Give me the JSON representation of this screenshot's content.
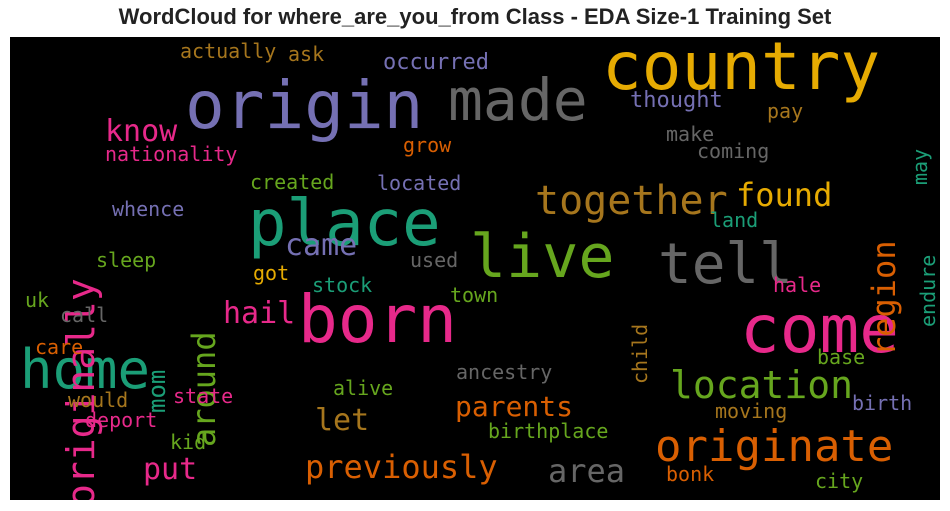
{
  "chart_data": {
    "type": "wordcloud",
    "title": "WordCloud for where_are_you_from Class - EDA Size-1 Training Set",
    "background": "#000000",
    "words": [
      {
        "text": "country",
        "color": "#e6ab02",
        "weight": 0.95
      },
      {
        "text": "origin",
        "color": "#7570b3",
        "weight": 1.0
      },
      {
        "text": "made",
        "color": "#666666",
        "weight": 0.8
      },
      {
        "text": "place",
        "color": "#1b9e77",
        "weight": 0.92
      },
      {
        "text": "born",
        "color": "#e7298a",
        "weight": 0.9
      },
      {
        "text": "come",
        "color": "#e7298a",
        "weight": 0.87
      },
      {
        "text": "home",
        "color": "#1b9e77",
        "weight": 0.78
      },
      {
        "text": "live",
        "color": "#66a61e",
        "weight": 0.8
      },
      {
        "text": "tell",
        "color": "#666666",
        "weight": 0.72
      },
      {
        "text": "originally",
        "color": "#e7298a",
        "weight": 0.62
      },
      {
        "text": "together",
        "color": "#a6761d",
        "weight": 0.6
      },
      {
        "text": "originate",
        "color": "#d95f02",
        "weight": 0.68
      },
      {
        "text": "location",
        "color": "#66a61e",
        "weight": 0.6
      },
      {
        "text": "previously",
        "color": "#d95f02",
        "weight": 0.5
      },
      {
        "text": "found",
        "color": "#e6ab02",
        "weight": 0.5
      },
      {
        "text": "region",
        "color": "#d95f02",
        "weight": 0.5
      },
      {
        "text": "around",
        "color": "#66a61e",
        "weight": 0.5
      },
      {
        "text": "know",
        "color": "#e7298a",
        "weight": 0.45
      },
      {
        "text": "came",
        "color": "#7570b3",
        "weight": 0.45
      },
      {
        "text": "hail",
        "color": "#e7298a",
        "weight": 0.45
      },
      {
        "text": "area",
        "color": "#666666",
        "weight": 0.45
      },
      {
        "text": "put",
        "color": "#e7298a",
        "weight": 0.45
      },
      {
        "text": "let",
        "color": "#a6761d",
        "weight": 0.45
      },
      {
        "text": "parents",
        "color": "#d95f02",
        "weight": 0.45
      },
      {
        "text": "mom",
        "color": "#1b9e77",
        "weight": 0.35
      },
      {
        "text": "thought",
        "color": "#7570b3",
        "weight": 0.3
      },
      {
        "text": "occurred",
        "color": "#7570b3",
        "weight": 0.3
      },
      {
        "text": "actually",
        "color": "#a6761d",
        "weight": 0.3
      },
      {
        "text": "ask",
        "color": "#a6761d",
        "weight": 0.3
      },
      {
        "text": "nationality",
        "color": "#e7298a",
        "weight": 0.3
      },
      {
        "text": "grow",
        "color": "#d95f02",
        "weight": 0.3
      },
      {
        "text": "make",
        "color": "#666666",
        "weight": 0.3
      },
      {
        "text": "coming",
        "color": "#666666",
        "weight": 0.3
      },
      {
        "text": "pay",
        "color": "#a6761d",
        "weight": 0.3
      },
      {
        "text": "may",
        "color": "#1b9e77",
        "weight": 0.28
      },
      {
        "text": "endure",
        "color": "#1b9e77",
        "weight": 0.28
      },
      {
        "text": "created",
        "color": "#66a61e",
        "weight": 0.28
      },
      {
        "text": "located",
        "color": "#7570b3",
        "weight": 0.28
      },
      {
        "text": "whence",
        "color": "#7570b3",
        "weight": 0.28
      },
      {
        "text": "land",
        "color": "#1b9e77",
        "weight": 0.28
      },
      {
        "text": "sleep",
        "color": "#66a61e",
        "weight": 0.28
      },
      {
        "text": "got",
        "color": "#e6ab02",
        "weight": 0.28
      },
      {
        "text": "used",
        "color": "#666666",
        "weight": 0.28
      },
      {
        "text": "stock",
        "color": "#1b9e77",
        "weight": 0.28
      },
      {
        "text": "uk",
        "color": "#66a61e",
        "weight": 0.28
      },
      {
        "text": "call",
        "color": "#666666",
        "weight": 0.28
      },
      {
        "text": "town",
        "color": "#66a61e",
        "weight": 0.28
      },
      {
        "text": "child",
        "color": "#a6761d",
        "weight": 0.28
      },
      {
        "text": "hale",
        "color": "#e7298a",
        "weight": 0.28
      },
      {
        "text": "care",
        "color": "#d95f02",
        "weight": 0.28
      },
      {
        "text": "base",
        "color": "#66a61e",
        "weight": 0.28
      },
      {
        "text": "alive",
        "color": "#66a61e",
        "weight": 0.28
      },
      {
        "text": "ancestry",
        "color": "#666666",
        "weight": 0.28
      },
      {
        "text": "state",
        "color": "#e7298a",
        "weight": 0.28
      },
      {
        "text": "would",
        "color": "#a6761d",
        "weight": 0.28
      },
      {
        "text": "birth",
        "color": "#7570b3",
        "weight": 0.28
      },
      {
        "text": "moving",
        "color": "#a6761d",
        "weight": 0.28
      },
      {
        "text": "deport",
        "color": "#e7298a",
        "weight": 0.28
      },
      {
        "text": "kid",
        "color": "#66a61e",
        "weight": 0.28
      },
      {
        "text": "birthplace",
        "color": "#66a61e",
        "weight": 0.28
      },
      {
        "text": "bonk",
        "color": "#d95f02",
        "weight": 0.28
      },
      {
        "text": "city",
        "color": "#66a61e",
        "weight": 0.28
      }
    ]
  }
}
